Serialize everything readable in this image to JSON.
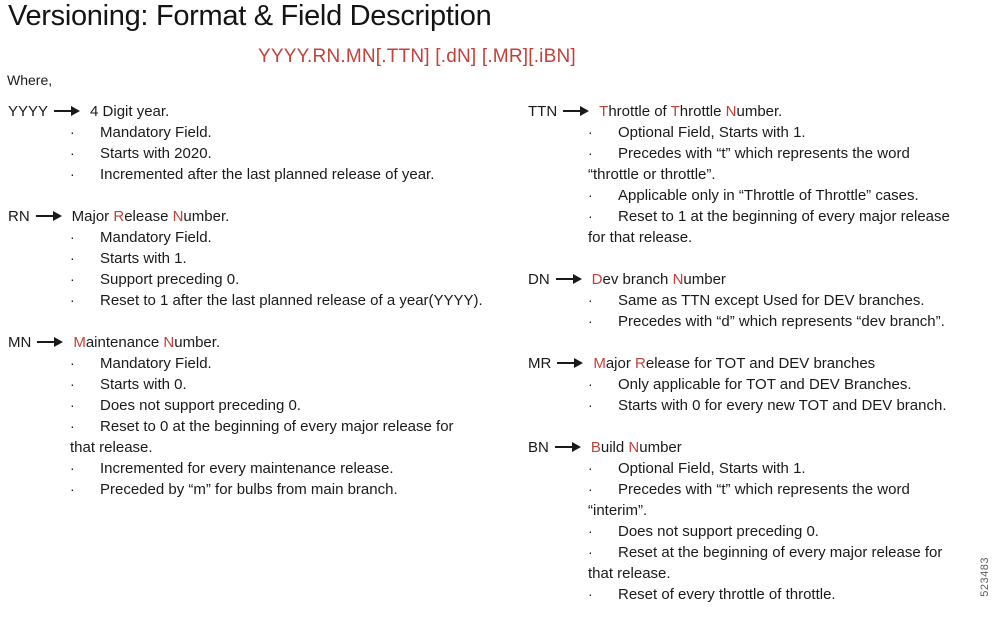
{
  "title": "Versioning: Format & Field Description",
  "format_line": "YYYY.RN.MN[.TTN] [.dN] [.MR][.iBN]",
  "where_label": "Where,",
  "watermark": "523483",
  "colors": {
    "accent_red": "#c2423b",
    "text": "#1a1a1a",
    "watermark_gray": "#5f5f5f"
  },
  "columns": {
    "left": [
      {
        "label": "YYYY",
        "heading": [
          {
            "t": "4 Digit year.",
            "red": false
          }
        ],
        "bullets": [
          "Mandatory Field.",
          "Starts with 2020.",
          "Incremented after the last planned release of year."
        ]
      },
      {
        "label": "RN",
        "heading": [
          {
            "t": "Major ",
            "red": false
          },
          {
            "t": "R",
            "red": true
          },
          {
            "t": "elease ",
            "red": false
          },
          {
            "t": "N",
            "red": true
          },
          {
            "t": "umber.",
            "red": false
          }
        ],
        "bullets": [
          "Mandatory Field.",
          "Starts with 1.",
          "Support preceding 0.",
          "Reset to 1 after the last planned release of a year(YYYY)."
        ]
      },
      {
        "label": "MN",
        "heading": [
          {
            "t": "M",
            "red": true
          },
          {
            "t": "aintenance ",
            "red": false
          },
          {
            "t": "N",
            "red": true
          },
          {
            "t": "umber.",
            "red": false
          }
        ],
        "bullets": [
          "Mandatory Field.",
          "Starts with 0.",
          "Does not support preceding 0.",
          "Reset to 0 at the beginning of every major release for\nthat release.",
          "Incremented for every maintenance release.",
          "Preceded by “m” for bulbs from main branch."
        ]
      }
    ],
    "right": [
      {
        "label": "TTN",
        "heading": [
          {
            "t": "T",
            "red": true
          },
          {
            "t": "hrottle of ",
            "red": false
          },
          {
            "t": "T",
            "red": true
          },
          {
            "t": "hrottle ",
            "red": false
          },
          {
            "t": "N",
            "red": true
          },
          {
            "t": "umber.",
            "red": false
          }
        ],
        "bullets": [
          "Optional Field, Starts with 1.",
          "Precedes with “t” which represents the word\n“throttle or throttle”.",
          "Applicable only in “Throttle of Throttle” cases.",
          "Reset to 1 at the beginning of every major release\nfor that release."
        ]
      },
      {
        "label": "DN",
        "heading": [
          {
            "t": "D",
            "red": true
          },
          {
            "t": "ev branch ",
            "red": false
          },
          {
            "t": "N",
            "red": true
          },
          {
            "t": "umber",
            "red": false
          }
        ],
        "bullets": [
          "Same as TTN except Used for DEV branches.",
          "Precedes with “d” which represents “dev branch”."
        ]
      },
      {
        "label": "MR",
        "heading": [
          {
            "t": "M",
            "red": true
          },
          {
            "t": "ajor ",
            "red": false
          },
          {
            "t": "R",
            "red": true
          },
          {
            "t": "elease for TOT and DEV branches",
            "red": false
          }
        ],
        "bullets": [
          "Only applicable for TOT and DEV Branches.",
          "Starts with 0 for every new TOT and DEV branch."
        ]
      },
      {
        "label": "BN",
        "heading": [
          {
            "t": "B",
            "red": true
          },
          {
            "t": "uild ",
            "red": false
          },
          {
            "t": "N",
            "red": true
          },
          {
            "t": "umber",
            "red": false
          }
        ],
        "bullets": [
          "Optional Field, Starts with 1.",
          "Precedes with “t” which represents the word\n“interim”.",
          "Does not support preceding 0.",
          "Reset at the beginning of every major release for\nthat release.",
          "Reset of every throttle of throttle."
        ]
      }
    ]
  }
}
